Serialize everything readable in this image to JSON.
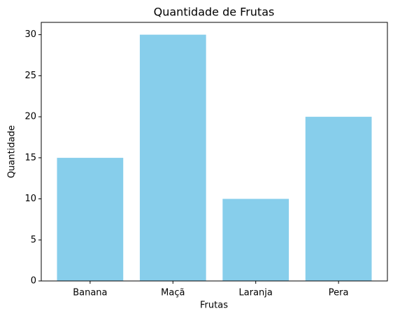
{
  "chart_data": {
    "type": "bar",
    "title": "Quantidade de Frutas",
    "x_label": "Frutas",
    "y_label": "Quantidade",
    "categories": [
      "Banana",
      "Maçã",
      "Laranja",
      "Pera"
    ],
    "values": [
      15,
      30,
      10,
      20
    ],
    "color": "#87ceeb",
    "ylim": [
      0,
      31.5
    ],
    "yticks": [
      0,
      5,
      10,
      15,
      20,
      25,
      30
    ],
    "grid": false
  }
}
